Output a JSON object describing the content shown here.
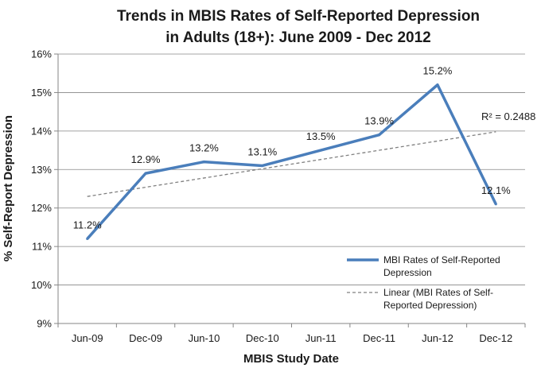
{
  "chart_data": {
    "type": "line",
    "title_lines": [
      "Trends in MBIS Rates of Self-Reported Depression",
      "in Adults (18+): June 2009 - Dec 2012"
    ],
    "xlabel": "MBIS Study Date",
    "ylabel": "% Self-Report Depression",
    "categories": [
      "Jun-09",
      "Dec-09",
      "Jun-10",
      "Dec-10",
      "Jun-11",
      "Dec-11",
      "Jun-12",
      "Dec-12"
    ],
    "ylim": [
      9,
      16
    ],
    "yticks": [
      9,
      10,
      11,
      12,
      13,
      14,
      15,
      16
    ],
    "ytick_labels": [
      "9%",
      "10%",
      "11%",
      "12%",
      "13%",
      "14%",
      "15%",
      "16%"
    ],
    "series": [
      {
        "name": "MBI Rates of Self-Reported Depression",
        "legend_lines": [
          "MBI Rates of Self-Reported",
          "Depression"
        ],
        "values": [
          11.2,
          12.9,
          13.2,
          13.1,
          13.5,
          13.9,
          15.2,
          12.1
        ],
        "labels": [
          "11.2%",
          "12.9%",
          "13.2%",
          "13.1%",
          "13.5%",
          "13.9%",
          "15.2%",
          "12.1%"
        ],
        "color": "#4a7ebb"
      }
    ],
    "trendline": {
      "name": "Linear (MBI Rates of Self-Reported Depression)",
      "legend_lines": [
        "Linear (MBI Rates of Self-",
        "Reported Depression)"
      ],
      "start_value": 12.3,
      "end_value": 13.98,
      "r2_label": "R² = 0.2488",
      "color": "#808080"
    },
    "gridlines": true,
    "legend_position": "bottom-right"
  }
}
